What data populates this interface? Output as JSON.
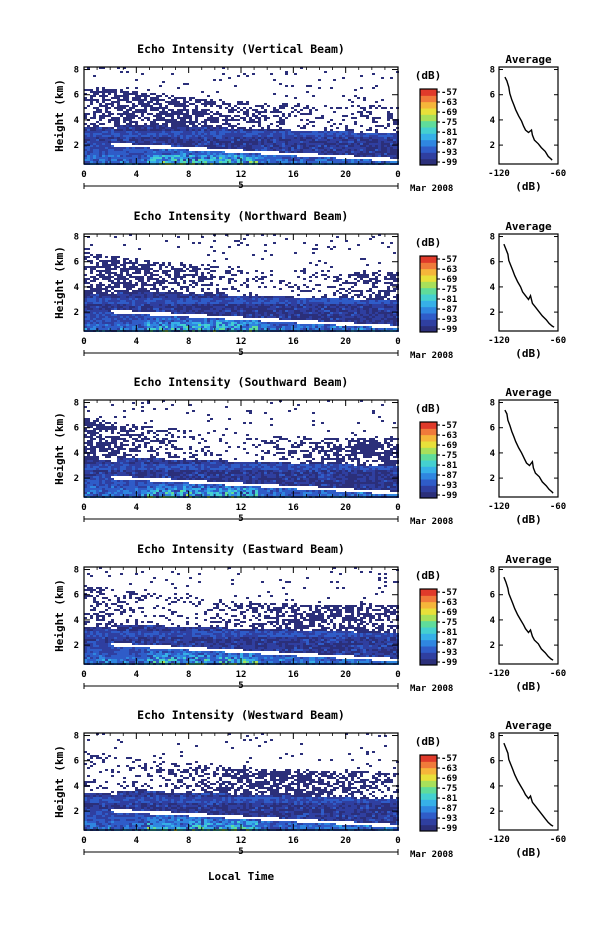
{
  "common": {
    "xlabel": "Local Time",
    "date_label": "Mar 2008",
    "date_day": "5",
    "ylabel": "Height (km)",
    "cbar_unit": "(dB)",
    "cbar_ticks": [
      "-57",
      "-63",
      "-69",
      "-75",
      "-81",
      "-87",
      "-93",
      "-99"
    ],
    "avg_title": "Average",
    "avg_xlabel": "(dB)",
    "avg_xticks": [
      "-120",
      "-60"
    ]
  },
  "chart_data": [
    {
      "type": "heatmap",
      "title": "Echo Intensity (Vertical Beam)",
      "xlabel": "Local Time",
      "ylabel": "Height (km)",
      "xticks": [
        "0",
        "4",
        "8",
        "12",
        "16",
        "20",
        "0"
      ],
      "xlim": [
        0,
        24
      ],
      "yticks": [
        "2",
        "4",
        "6",
        "8"
      ],
      "ylim": [
        0.5,
        8.2
      ],
      "colorbar": {
        "label": "(dB)",
        "range": [
          -99,
          -57
        ]
      },
      "average_profile": {
        "title": "Average",
        "xlabel": "(dB)",
        "xlim": [
          -120,
          -60
        ],
        "ylim": [
          0.5,
          8.2
        ],
        "x": [
          -114,
          -112,
          -110,
          -109,
          -107,
          -105,
          -103,
          -100,
          -97,
          -95,
          -93,
          -90,
          -87,
          -86,
          -84,
          -80,
          -77,
          -73,
          -70,
          -67,
          -66
        ],
        "y": [
          7.4,
          7.1,
          6.6,
          6.1,
          5.6,
          5.2,
          4.8,
          4.3,
          3.9,
          3.5,
          3.2,
          3.0,
          3.2,
          2.8,
          2.4,
          2.1,
          1.8,
          1.5,
          1.1,
          0.9,
          0.8
        ]
      }
    },
    {
      "type": "heatmap",
      "title": "Echo Intensity (Northward Beam)",
      "xlabel": "Local Time",
      "ylabel": "Height (km)",
      "xticks": [
        "0",
        "4",
        "8",
        "12",
        "16",
        "20",
        "0"
      ],
      "xlim": [
        0,
        24
      ],
      "yticks": [
        "2",
        "4",
        "6",
        "8"
      ],
      "ylim": [
        0.5,
        8.2
      ],
      "colorbar": {
        "label": "(dB)",
        "range": [
          -99,
          -57
        ]
      },
      "average_profile": {
        "title": "Average",
        "xlabel": "(dB)",
        "xlim": [
          -120,
          -60
        ],
        "ylim": [
          0.5,
          8.2
        ],
        "x": [
          -115,
          -113,
          -111,
          -110,
          -108,
          -106,
          -104,
          -101,
          -98,
          -96,
          -93,
          -90,
          -88,
          -86,
          -83,
          -80,
          -76,
          -72,
          -69,
          -66,
          -64
        ],
        "y": [
          7.4,
          7.0,
          6.6,
          6.1,
          5.7,
          5.3,
          4.9,
          4.4,
          4.0,
          3.6,
          3.3,
          3.0,
          3.3,
          2.7,
          2.4,
          2.1,
          1.7,
          1.4,
          1.1,
          0.9,
          0.8
        ]
      }
    },
    {
      "type": "heatmap",
      "title": "Echo Intensity (Southward Beam)",
      "xlabel": "Local Time",
      "ylabel": "Height (km)",
      "xticks": [
        "0",
        "4",
        "8",
        "12",
        "16",
        "20",
        "0"
      ],
      "xlim": [
        0,
        24
      ],
      "yticks": [
        "2",
        "4",
        "6",
        "8"
      ],
      "ylim": [
        0.5,
        8.2
      ],
      "colorbar": {
        "label": "(dB)",
        "range": [
          -99,
          -57
        ]
      },
      "average_profile": {
        "title": "Average",
        "xlabel": "(dB)",
        "xlim": [
          -120,
          -60
        ],
        "ylim": [
          0.5,
          8.2
        ],
        "x": [
          -114,
          -112,
          -111,
          -109,
          -107,
          -105,
          -103,
          -100,
          -97,
          -94,
          -92,
          -89,
          -86,
          -85,
          -83,
          -79,
          -76,
          -72,
          -69,
          -66,
          -65
        ],
        "y": [
          7.4,
          7.1,
          6.6,
          6.2,
          5.7,
          5.3,
          4.9,
          4.4,
          4.0,
          3.5,
          3.2,
          3.0,
          3.3,
          2.8,
          2.4,
          2.1,
          1.7,
          1.4,
          1.1,
          0.9,
          0.8
        ]
      }
    },
    {
      "type": "heatmap",
      "title": "Echo Intensity (Eastward Beam)",
      "xlabel": "Local Time",
      "ylabel": "Height (km)",
      "xticks": [
        "0",
        "4",
        "8",
        "12",
        "16",
        "20",
        "0"
      ],
      "xlim": [
        0,
        24
      ],
      "yticks": [
        "2",
        "4",
        "6",
        "8"
      ],
      "ylim": [
        0.5,
        8.2
      ],
      "colorbar": {
        "label": "(dB)",
        "range": [
          -99,
          -57
        ]
      },
      "average_profile": {
        "title": "Average",
        "xlabel": "(dB)",
        "xlim": [
          -120,
          -60
        ],
        "ylim": [
          0.5,
          8.2
        ],
        "x": [
          -115,
          -113,
          -111,
          -110,
          -108,
          -106,
          -104,
          -101,
          -98,
          -95,
          -93,
          -90,
          -88,
          -86,
          -84,
          -80,
          -77,
          -73,
          -70,
          -67,
          -65
        ],
        "y": [
          7.4,
          7.0,
          6.5,
          6.1,
          5.7,
          5.3,
          4.9,
          4.4,
          4.0,
          3.6,
          3.3,
          3.0,
          3.2,
          2.7,
          2.4,
          2.1,
          1.7,
          1.4,
          1.1,
          0.9,
          0.8
        ]
      }
    },
    {
      "type": "heatmap",
      "title": "Echo Intensity (Westward Beam)",
      "xlabel": "Local Time",
      "ylabel": "Height (km)",
      "xticks": [
        "0",
        "4",
        "8",
        "12",
        "16",
        "20",
        "0"
      ],
      "xlim": [
        0,
        24
      ],
      "yticks": [
        "2",
        "4",
        "6",
        "8"
      ],
      "ylim": [
        0.5,
        8.2
      ],
      "colorbar": {
        "label": "(dB)",
        "range": [
          -99,
          -57
        ]
      },
      "average_profile": {
        "title": "Average",
        "xlabel": "(dB)",
        "xlim": [
          -120,
          -60
        ],
        "ylim": [
          0.5,
          8.2
        ],
        "x": [
          -115,
          -113,
          -111,
          -110,
          -108,
          -106,
          -104,
          -101,
          -98,
          -95,
          -93,
          -90,
          -88,
          -86,
          -83,
          -80,
          -76,
          -73,
          -70,
          -67,
          -65
        ],
        "y": [
          7.4,
          7.0,
          6.6,
          6.1,
          5.7,
          5.3,
          4.9,
          4.4,
          4.0,
          3.6,
          3.3,
          3.0,
          3.2,
          2.7,
          2.4,
          2.1,
          1.7,
          1.4,
          1.1,
          0.9,
          0.8
        ]
      }
    }
  ],
  "colors": {
    "colormap": [
      "#2b2f7a",
      "#2f3fa0",
      "#2f5cc8",
      "#2f86e0",
      "#36b0e8",
      "#44d0d0",
      "#5fdc9a",
      "#a8e05a",
      "#e8e03a",
      "#f5b63a",
      "#f07a3a",
      "#e03a2a"
    ],
    "frame": "#000000"
  }
}
